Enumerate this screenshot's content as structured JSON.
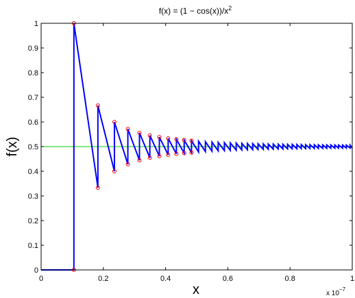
{
  "chart_data": {
    "type": "line",
    "title": "f(x) = (1 − cos(x))/x",
    "title_superscript": "2",
    "xlabel": "x",
    "ylabel": "f(x)",
    "x_exponent_base": "x 10",
    "x_exponent_power": "−7",
    "xlim": [
      0,
      1e-07
    ],
    "ylim": [
      0,
      1
    ],
    "xtick_values": [
      0,
      2e-08,
      4e-08,
      6e-08,
      8e-08,
      1e-07
    ],
    "xtick_labels": [
      "0",
      "0.2",
      "0.4",
      "0.6",
      "0.8",
      "1"
    ],
    "ytick_values": [
      0,
      0.1,
      0.2,
      0.3,
      0.4,
      0.5,
      0.6,
      0.7,
      0.8,
      0.9,
      1
    ],
    "ytick_labels": [
      "0",
      "0.1",
      "0.2",
      "0.3",
      "0.4",
      "0.5",
      "0.6",
      "0.7",
      "0.8",
      "0.9",
      "1"
    ],
    "grid": false,
    "series": [
      {
        "color": "#0000ff",
        "style": "line",
        "x": [
          0,
          1.0536e-08,
          1.0536e-08,
          1.8248e-08,
          1.8248e-08,
          2.3558e-08,
          2.3558e-08,
          2.7874e-08,
          2.7874e-08,
          3.1607e-08,
          3.1607e-08,
          3.4948e-08,
          3.4948e-08,
          3.8e-08,
          3.8e-08,
          4.083e-08,
          4.083e-08,
          4.348e-08,
          4.348e-08,
          4.598e-08,
          4.598e-08,
          4.833e-08,
          4.833e-08,
          5.06e-08,
          5.06e-08,
          5.28e-08,
          5.28e-08,
          5.49e-08,
          5.49e-08,
          5.69e-08,
          5.69e-08,
          5.89e-08,
          5.89e-08,
          6.08e-08,
          6.08e-08,
          6.27e-08,
          6.27e-08,
          6.45e-08,
          6.45e-08,
          6.63e-08,
          6.63e-08,
          6.8e-08,
          6.8e-08,
          6.97e-08,
          6.97e-08,
          7.14e-08,
          7.14e-08,
          7.3e-08,
          7.3e-08,
          7.46e-08,
          7.46e-08,
          7.62e-08,
          7.62e-08,
          7.77e-08,
          7.77e-08,
          7.92e-08,
          7.92e-08,
          8.07e-08,
          8.07e-08,
          8.22e-08,
          8.22e-08,
          8.36e-08,
          8.36e-08,
          8.5e-08,
          8.5e-08,
          8.64e-08,
          8.64e-08,
          8.78e-08,
          8.78e-08,
          8.91e-08,
          8.91e-08,
          9.05e-08,
          9.05e-08,
          9.18e-08,
          9.18e-08,
          9.31e-08,
          9.31e-08,
          9.44e-08,
          9.44e-08,
          9.56e-08,
          9.56e-08,
          9.69e-08,
          9.69e-08,
          9.81e-08,
          9.81e-08,
          9.93e-08,
          9.93e-08,
          1e-07
        ],
        "y": [
          0,
          0,
          1,
          0.3333,
          0.6667,
          0.4,
          0.6,
          0.4286,
          0.5714,
          0.4444,
          0.5556,
          0.4545,
          0.5455,
          0.4615,
          0.5385,
          0.4667,
          0.5333,
          0.4706,
          0.5294,
          0.4737,
          0.5263,
          0.4762,
          0.5238,
          0.4783,
          0.5217,
          0.48,
          0.52,
          0.4815,
          0.5185,
          0.4828,
          0.5172,
          0.4839,
          0.5161,
          0.4848,
          0.5152,
          0.4857,
          0.5143,
          0.4865,
          0.5135,
          0.4872,
          0.5128,
          0.4878,
          0.5122,
          0.4884,
          0.5116,
          0.4889,
          0.5111,
          0.4894,
          0.5106,
          0.4898,
          0.5102,
          0.4902,
          0.5098,
          0.4906,
          0.5094,
          0.4909,
          0.5091,
          0.4912,
          0.5088,
          0.4915,
          0.5085,
          0.4918,
          0.5082,
          0.4921,
          0.5079,
          0.4923,
          0.5077,
          0.4925,
          0.5075,
          0.4928,
          0.5072,
          0.493,
          0.507,
          0.4932,
          0.5068,
          0.4933,
          0.5067,
          0.4935,
          0.5065,
          0.4937,
          0.5063,
          0.4938,
          0.5062,
          0.494,
          0.506,
          0.4941,
          0.5059,
          0.4942
        ]
      },
      {
        "color": "#00cc00",
        "style": "line",
        "x": [
          0,
          1e-07
        ],
        "y": [
          0.5,
          0.5
        ]
      },
      {
        "color": "#ff0000",
        "style": "markers",
        "x": [
          1.0536e-08,
          1.0536e-08,
          1.8248e-08,
          1.8248e-08,
          2.3558e-08,
          2.3558e-08,
          2.7874e-08,
          2.7874e-08,
          3.1607e-08,
          3.1607e-08,
          3.4948e-08,
          3.4948e-08,
          3.8e-08,
          3.8e-08,
          4.083e-08,
          4.083e-08,
          4.348e-08,
          4.348e-08,
          4.598e-08,
          4.598e-08,
          4.833e-08,
          4.833e-08
        ],
        "y": [
          0,
          1,
          0.3333,
          0.6667,
          0.4,
          0.6,
          0.4286,
          0.5714,
          0.4444,
          0.5556,
          0.4545,
          0.5455,
          0.4615,
          0.5385,
          0.4667,
          0.5333,
          0.4706,
          0.5294,
          0.4737,
          0.5263,
          0.4762,
          0.5238
        ]
      }
    ]
  }
}
